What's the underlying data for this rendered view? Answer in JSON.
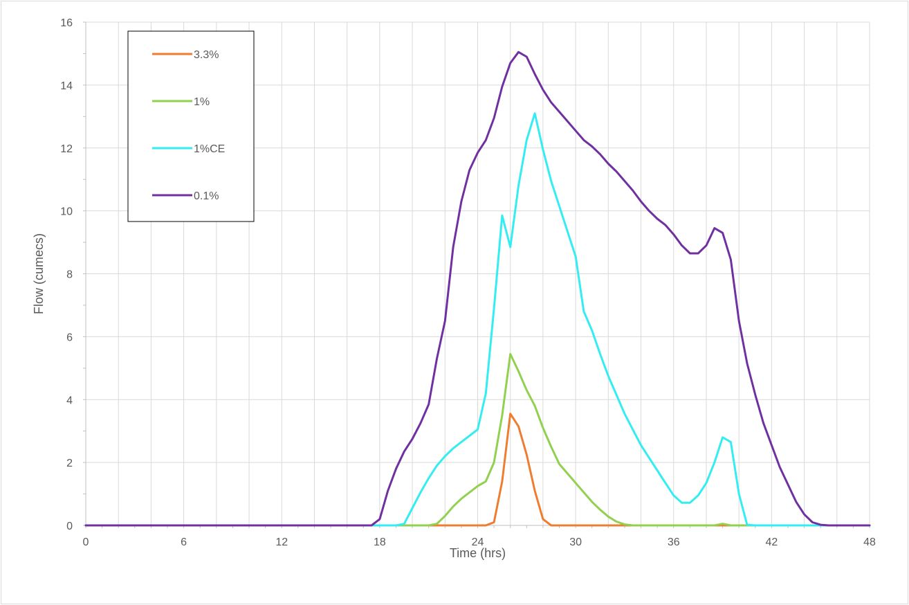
{
  "chart_data": {
    "type": "line",
    "title": "",
    "xlabel": "Time (hrs)",
    "ylabel": "Flow (cumecs)",
    "xlim": [
      0,
      48
    ],
    "ylim": [
      0,
      16
    ],
    "x_ticks": [
      0,
      6,
      12,
      18,
      24,
      30,
      36,
      42,
      48
    ],
    "y_ticks": [
      0,
      2,
      4,
      6,
      8,
      10,
      12,
      14,
      16
    ],
    "grid": true,
    "legend_position": "top-left",
    "series": [
      {
        "name": "3.3%",
        "color": "#ED7D31",
        "points": [
          [
            0,
            0
          ],
          [
            17.5,
            0
          ],
          [
            24,
            0
          ],
          [
            24.5,
            0
          ],
          [
            25,
            0.1
          ],
          [
            25.5,
            1.4
          ],
          [
            26,
            3.55
          ],
          [
            26.5,
            3.15
          ],
          [
            27,
            2.25
          ],
          [
            27.5,
            1.1
          ],
          [
            28,
            0.2
          ],
          [
            28.5,
            0
          ],
          [
            33,
            0
          ],
          [
            48,
            0
          ]
        ]
      },
      {
        "name": "1%",
        "color": "#92D050",
        "points": [
          [
            0,
            0
          ],
          [
            18,
            0
          ],
          [
            21,
            0
          ],
          [
            21.5,
            0.05
          ],
          [
            22,
            0.3
          ],
          [
            22.5,
            0.6
          ],
          [
            23,
            0.85
          ],
          [
            23.5,
            1.05
          ],
          [
            24,
            1.25
          ],
          [
            24.5,
            1.4
          ],
          [
            25,
            2.0
          ],
          [
            25.5,
            3.5
          ],
          [
            26,
            5.45
          ],
          [
            26.5,
            4.9
          ],
          [
            27,
            4.3
          ],
          [
            27.5,
            3.8
          ],
          [
            28,
            3.1
          ],
          [
            28.5,
            2.5
          ],
          [
            29,
            1.95
          ],
          [
            29.5,
            1.65
          ],
          [
            30,
            1.35
          ],
          [
            30.5,
            1.05
          ],
          [
            31,
            0.75
          ],
          [
            31.5,
            0.5
          ],
          [
            32,
            0.28
          ],
          [
            32.5,
            0.12
          ],
          [
            33,
            0.03
          ],
          [
            33.5,
            0
          ],
          [
            38.5,
            0
          ],
          [
            39,
            0.05
          ],
          [
            39.5,
            0
          ],
          [
            48,
            0
          ]
        ]
      },
      {
        "name": "1%CE",
        "color": "#33EDF2",
        "points": [
          [
            0,
            0
          ],
          [
            18,
            0
          ],
          [
            19,
            0
          ],
          [
            19.5,
            0.05
          ],
          [
            20,
            0.55
          ],
          [
            20.5,
            1.05
          ],
          [
            21,
            1.5
          ],
          [
            21.5,
            1.9
          ],
          [
            22,
            2.2
          ],
          [
            22.5,
            2.45
          ],
          [
            23,
            2.65
          ],
          [
            23.5,
            2.85
          ],
          [
            24,
            3.05
          ],
          [
            24.5,
            4.2
          ],
          [
            25,
            6.9
          ],
          [
            25.5,
            9.85
          ],
          [
            26,
            8.85
          ],
          [
            26.5,
            10.8
          ],
          [
            27,
            12.25
          ],
          [
            27.5,
            13.1
          ],
          [
            28,
            11.95
          ],
          [
            28.5,
            10.95
          ],
          [
            29,
            10.15
          ],
          [
            29.5,
            9.35
          ],
          [
            30,
            8.55
          ],
          [
            30.5,
            6.8
          ],
          [
            31,
            6.2
          ],
          [
            31.5,
            5.45
          ],
          [
            32,
            4.75
          ],
          [
            32.5,
            4.15
          ],
          [
            33,
            3.55
          ],
          [
            33.5,
            3.05
          ],
          [
            34,
            2.55
          ],
          [
            34.5,
            2.15
          ],
          [
            35,
            1.75
          ],
          [
            35.5,
            1.35
          ],
          [
            36,
            0.95
          ],
          [
            36.5,
            0.72
          ],
          [
            37,
            0.72
          ],
          [
            37.5,
            0.95
          ],
          [
            38,
            1.35
          ],
          [
            38.5,
            2.0
          ],
          [
            39,
            2.8
          ],
          [
            39.5,
            2.65
          ],
          [
            40,
            1.0
          ],
          [
            40.5,
            0.02
          ],
          [
            41,
            0
          ],
          [
            48,
            0
          ]
        ]
      },
      {
        "name": "0.1%",
        "color": "#7030A0",
        "points": [
          [
            0,
            0
          ],
          [
            17.5,
            0
          ],
          [
            18,
            0.2
          ],
          [
            18.5,
            1.1
          ],
          [
            19,
            1.8
          ],
          [
            19.5,
            2.35
          ],
          [
            20,
            2.75
          ],
          [
            20.5,
            3.25
          ],
          [
            21,
            3.85
          ],
          [
            21.5,
            5.3
          ],
          [
            22,
            6.5
          ],
          [
            22.5,
            8.85
          ],
          [
            23,
            10.3
          ],
          [
            23.5,
            11.3
          ],
          [
            24,
            11.85
          ],
          [
            24.5,
            12.25
          ],
          [
            25,
            12.95
          ],
          [
            25.5,
            13.95
          ],
          [
            26,
            14.7
          ],
          [
            26.5,
            15.05
          ],
          [
            27,
            14.9
          ],
          [
            27.5,
            14.35
          ],
          [
            28,
            13.85
          ],
          [
            28.5,
            13.45
          ],
          [
            29,
            13.15
          ],
          [
            29.5,
            12.85
          ],
          [
            30,
            12.55
          ],
          [
            30.5,
            12.25
          ],
          [
            31,
            12.05
          ],
          [
            31.5,
            11.8
          ],
          [
            32,
            11.5
          ],
          [
            32.5,
            11.25
          ],
          [
            33,
            10.95
          ],
          [
            33.5,
            10.65
          ],
          [
            34,
            10.3
          ],
          [
            34.5,
            10.0
          ],
          [
            35,
            9.75
          ],
          [
            35.5,
            9.55
          ],
          [
            36,
            9.25
          ],
          [
            36.5,
            8.9
          ],
          [
            37,
            8.65
          ],
          [
            37.5,
            8.65
          ],
          [
            38,
            8.9
          ],
          [
            38.5,
            9.45
          ],
          [
            39,
            9.3
          ],
          [
            39.5,
            8.45
          ],
          [
            40,
            6.5
          ],
          [
            40.5,
            5.15
          ],
          [
            41,
            4.15
          ],
          [
            41.5,
            3.25
          ],
          [
            42,
            2.55
          ],
          [
            42.5,
            1.85
          ],
          [
            43,
            1.3
          ],
          [
            43.5,
            0.75
          ],
          [
            44,
            0.35
          ],
          [
            44.5,
            0.1
          ],
          [
            45,
            0.02
          ],
          [
            45.5,
            0
          ],
          [
            48,
            0
          ]
        ]
      }
    ]
  }
}
